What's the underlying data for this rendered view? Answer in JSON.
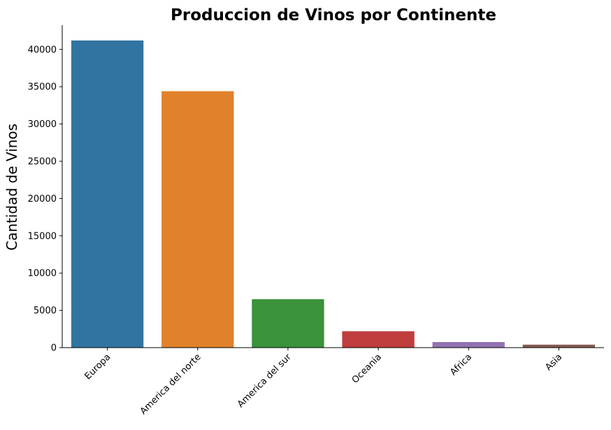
{
  "chart_data": {
    "type": "bar",
    "title": "Produccion de Vinos por Continente",
    "xlabel": "",
    "ylabel": "Cantidad de Vinos",
    "categories": [
      "Europa",
      "America del norte",
      "America del sur",
      "Oceania",
      "Africa",
      "Asia"
    ],
    "values": [
      41200,
      34400,
      6500,
      2200,
      750,
      400
    ],
    "colors": [
      "#3274a1",
      "#e1812c",
      "#3a923a",
      "#c03d3e",
      "#9372b2",
      "#845b53"
    ],
    "yticks": [
      0,
      5000,
      10000,
      15000,
      20000,
      25000,
      30000,
      35000,
      40000
    ],
    "ylim": [
      0,
      43260
    ],
    "grid": false,
    "legend": "none"
  }
}
